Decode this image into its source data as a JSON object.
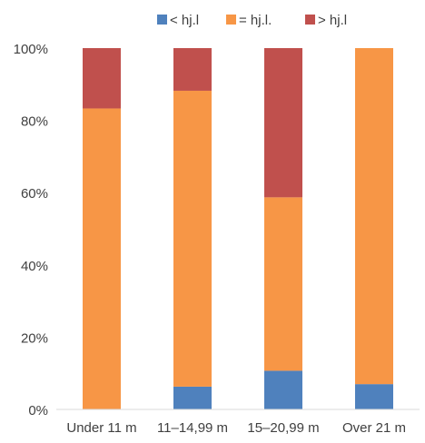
{
  "chart_data": {
    "type": "bar",
    "stacked": true,
    "percent_stacked": true,
    "categories": [
      "Under 11 m",
      "11–14,99 m",
      "15–20,99 m",
      "Over 21 m"
    ],
    "series": [
      {
        "name": "< hj.l",
        "color": "#4F81BD",
        "values": [
          0,
          6.3,
          10.7,
          7
        ]
      },
      {
        "name": "= hj.l.",
        "color": "#F79646",
        "values": [
          83.3,
          81.9,
          48,
          93
        ]
      },
      {
        "name": "> hj.l",
        "color": "#C0504D",
        "values": [
          16.7,
          11.8,
          41.3,
          0
        ]
      }
    ],
    "yticks": [
      "0%",
      "20%",
      "40%",
      "60%",
      "80%",
      "100%"
    ],
    "ylim": [
      0,
      100
    ],
    "legend_position": "top",
    "grid": false
  }
}
